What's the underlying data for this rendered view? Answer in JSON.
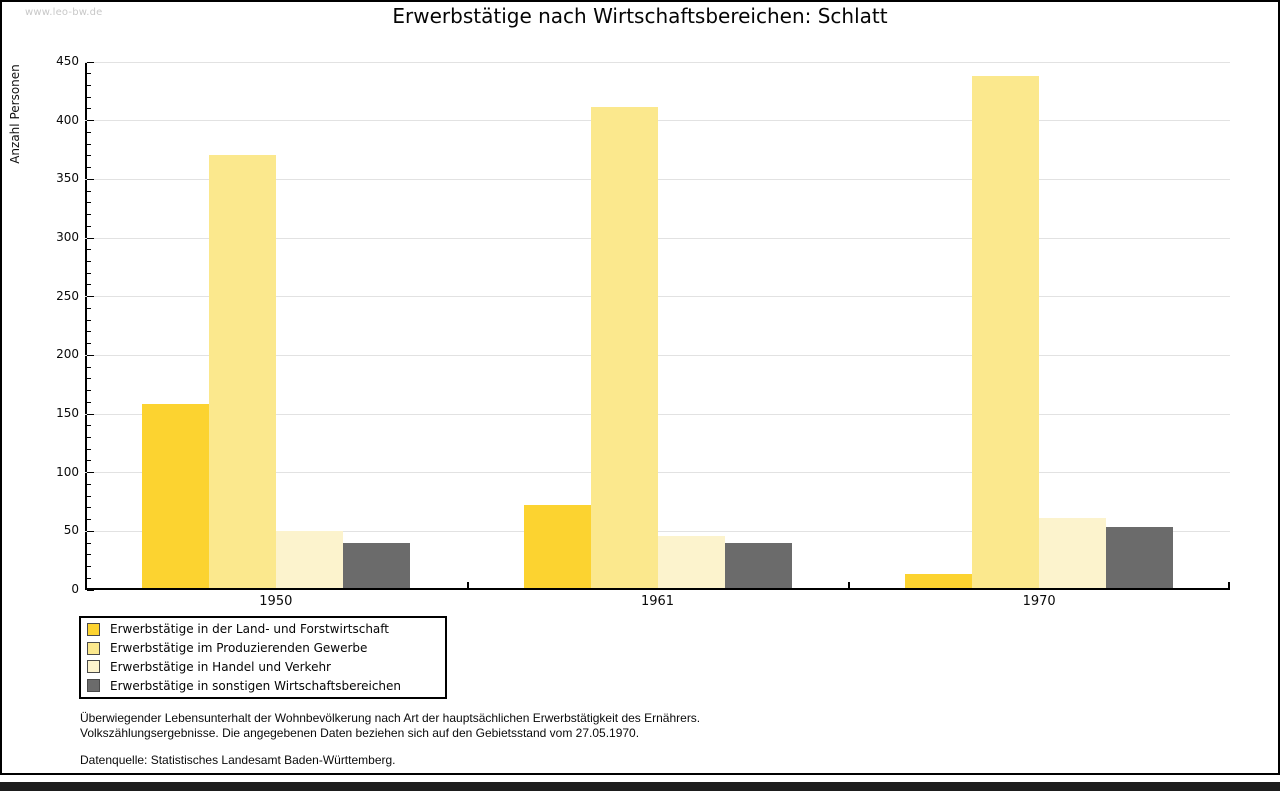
{
  "watermark": "www.leo-bw.de",
  "title": "Erwerbstätige nach Wirtschaftsbereichen: Schlatt",
  "chart_data": {
    "type": "bar",
    "title": "Erwerbstätige nach Wirtschaftsbereichen: Schlatt",
    "xlabel": "",
    "ylabel": "Anzahl Personen",
    "categories": [
      "1950",
      "1961",
      "1970"
    ],
    "series": [
      {
        "name": "Erwerbstätige in der Land- und Forstwirtschaft",
        "color": "#fcd330",
        "values": [
          157,
          71,
          12
        ]
      },
      {
        "name": "Erwerbstätige im Produzierenden Gewerbe",
        "color": "#fbe88d",
        "values": [
          369,
          410,
          436
        ]
      },
      {
        "name": "Erwerbstätige in Handel und Verkehr",
        "color": "#fcf3cd",
        "values": [
          49,
          44,
          60
        ]
      },
      {
        "name": "Erwerbstätige in sonstigen Wirtschaftsbereichen",
        "color": "#6b6b6b",
        "values": [
          38,
          38,
          52
        ]
      }
    ],
    "ylim": [
      0,
      450
    ],
    "ytick_step": 50,
    "yminor_step": 10,
    "grid": true,
    "gridline_color": "#e2e2e2",
    "legend_position": "bottom-left"
  },
  "footnotes": {
    "line1": "Überwiegender Lebensunterhalt der Wohnbevölkerung nach Art der hauptsächlichen Erwerbstätigkeit des Ernährers.",
    "line2": "Volkszählungsergebnisse. Die angegebenen Daten beziehen sich auf den Gebietsstand vom 27.05.1970.",
    "source": "Datenquelle: Statistisches Landesamt Baden-Württemberg."
  }
}
